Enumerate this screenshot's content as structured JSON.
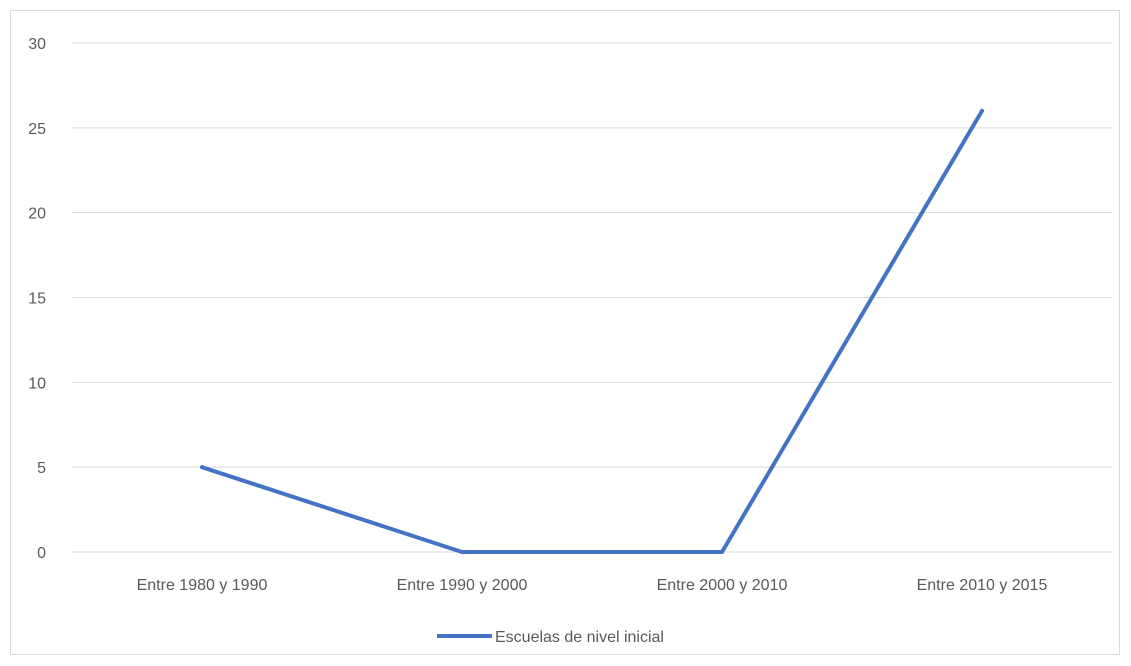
{
  "chart_data": {
    "type": "line",
    "categories": [
      "Entre 1980 y 1990",
      "Entre 1990 y 2000",
      "Entre 2000 y 2010",
      "Entre 2010 y 2015"
    ],
    "series": [
      {
        "name": "Escuelas de nivel inicial",
        "values": [
          5,
          0,
          0,
          26
        ],
        "color": "#4472c4"
      }
    ],
    "yticks": [
      "0",
      "5",
      "10",
      "15",
      "20",
      "25",
      "30"
    ],
    "ylim": [
      0,
      30
    ],
    "grid": true,
    "legend": "bottom"
  }
}
